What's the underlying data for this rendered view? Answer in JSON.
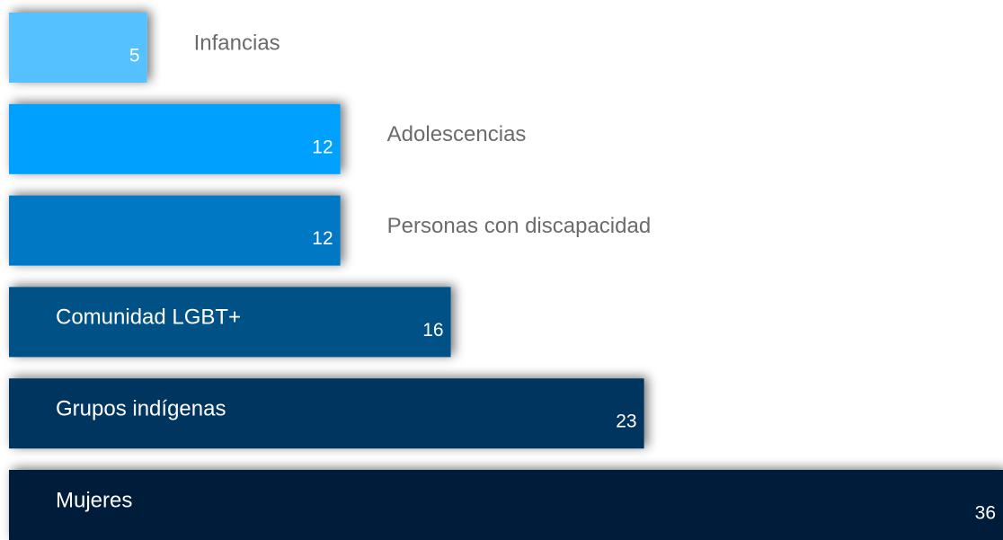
{
  "chart_data": {
    "type": "bar",
    "orientation": "horizontal",
    "categories": [
      "Infancias",
      "Adolescencias",
      "Personas con discapacidad",
      "Comunidad LGBT+",
      "Grupos indígenas",
      "Mujeres"
    ],
    "values": [
      5,
      12,
      12,
      16,
      23,
      36
    ],
    "colors": [
      "#56c1ff",
      "#00a0ff",
      "#0078c4",
      "#005185",
      "#003461",
      "#021a3a"
    ]
  }
}
